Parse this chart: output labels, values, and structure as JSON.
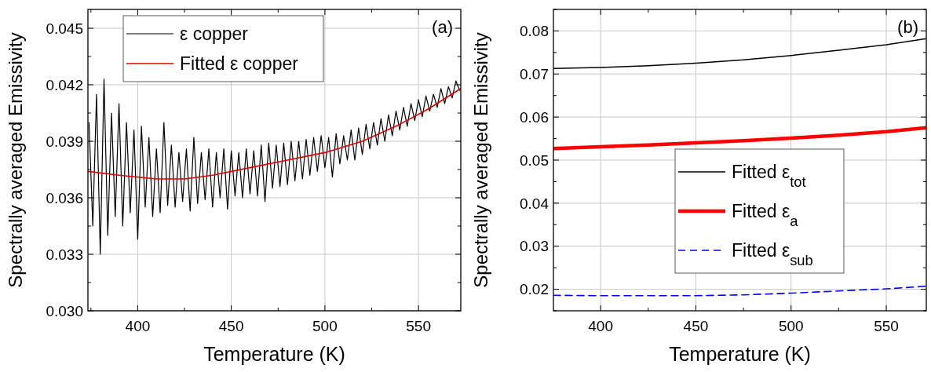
{
  "chart_data": [
    {
      "type": "line",
      "xlabel": "Temperature (K)",
      "ylabel": "Spectrally averaged Emissivity",
      "annotations": [
        "(a)"
      ],
      "xlim": [
        373.4,
        572.6
      ],
      "ylim": [
        0.03,
        0.046
      ],
      "xticks": [
        400,
        450,
        500,
        550
      ],
      "yticks": [
        {
          "value": 0.03,
          "label": "0.030"
        },
        0.033,
        0.036,
        0.039,
        0.042,
        0.045
      ],
      "grid": true,
      "legend": "top left",
      "series": [
        {
          "name": "ε copper",
          "color": "#000000",
          "x": [
            374,
            376,
            378,
            380,
            382,
            384,
            386,
            388,
            390,
            392,
            394,
            396,
            398,
            400,
            402,
            404,
            406,
            408,
            410,
            412,
            414,
            416,
            418,
            420,
            422,
            424,
            426,
            428,
            430,
            432,
            434,
            436,
            438,
            440,
            442,
            444,
            446,
            448,
            450,
            452,
            454,
            456,
            458,
            460,
            462,
            464,
            466,
            468,
            470,
            472,
            474,
            476,
            478,
            480,
            482,
            484,
            486,
            488,
            490,
            492,
            494,
            496,
            498,
            500,
            502,
            504,
            506,
            508,
            510,
            512,
            514,
            516,
            518,
            520,
            522,
            524,
            526,
            528,
            530,
            532,
            534,
            536,
            538,
            540,
            542,
            544,
            546,
            548,
            550,
            552,
            554,
            556,
            558,
            560,
            562,
            564,
            566,
            568,
            570,
            572
          ],
          "values": [
            0.04,
            0.0345,
            0.0415,
            0.033,
            0.0423,
            0.034,
            0.0405,
            0.035,
            0.041,
            0.0345,
            0.04,
            0.0352,
            0.0396,
            0.0338,
            0.0398,
            0.0355,
            0.0392,
            0.035,
            0.0386,
            0.0352,
            0.04,
            0.0356,
            0.0388,
            0.0355,
            0.0384,
            0.0358,
            0.0386,
            0.0353,
            0.0392,
            0.0357,
            0.0384,
            0.0359,
            0.0386,
            0.0355,
            0.0384,
            0.036,
            0.0386,
            0.0354,
            0.0385,
            0.0361,
            0.0384,
            0.036,
            0.0386,
            0.0362,
            0.0385,
            0.0361,
            0.0388,
            0.0358,
            0.0389,
            0.0365,
            0.0388,
            0.0366,
            0.0389,
            0.0367,
            0.039,
            0.0369,
            0.039,
            0.037,
            0.0391,
            0.0372,
            0.0392,
            0.0374,
            0.0393,
            0.0376,
            0.0392,
            0.0371,
            0.0394,
            0.0378,
            0.0393,
            0.038,
            0.0396,
            0.038,
            0.0397,
            0.0383,
            0.0399,
            0.0386,
            0.04,
            0.0388,
            0.0402,
            0.039,
            0.0404,
            0.0393,
            0.0406,
            0.0396,
            0.0408,
            0.0398,
            0.041,
            0.0401,
            0.0412,
            0.0403,
            0.0414,
            0.0406,
            0.0415,
            0.0408,
            0.0418,
            0.041,
            0.0419,
            0.0413,
            0.0422,
            0.0417
          ]
        },
        {
          "name": "Fitted ε copper",
          "color": "#e00000",
          "x": [
            373.4,
            390,
            410,
            425,
            440,
            460,
            480,
            500,
            520,
            540,
            555,
            572.6
          ],
          "values": [
            0.0374,
            0.0372,
            0.037,
            0.037,
            0.0372,
            0.0376,
            0.038,
            0.0384,
            0.039,
            0.0399,
            0.0407,
            0.0418
          ]
        }
      ]
    },
    {
      "type": "line",
      "xlabel": "Temperature (K)",
      "ylabel": "Spectrally averaged Emissivity",
      "annotations": [
        "(b)"
      ],
      "xlim": [
        375.2,
        571
      ],
      "ylim": [
        0.015,
        0.085
      ],
      "xticks": [
        400,
        450,
        500,
        550
      ],
      "yticks": [
        0.02,
        0.03,
        0.04,
        0.05,
        0.06,
        0.07,
        0.08
      ],
      "grid": true,
      "legend": "bottom right",
      "series": [
        {
          "name": "Fitted ε$_{tot}$",
          "color": "#000000",
          "x": [
            375.2,
            400,
            425,
            450,
            475,
            500,
            525,
            550,
            571
          ],
          "values": [
            0.0713,
            0.0715,
            0.0719,
            0.0725,
            0.0733,
            0.0743,
            0.0755,
            0.0768,
            0.0782
          ]
        },
        {
          "name": "Fitted ε$_{a}$",
          "color": "#ff0000",
          "x": [
            375.2,
            400,
            425,
            450,
            475,
            500,
            525,
            550,
            571
          ],
          "values": [
            0.0527,
            0.0531,
            0.0535,
            0.054,
            0.0545,
            0.0551,
            0.0558,
            0.0566,
            0.0575
          ]
        },
        {
          "name": "Fitted ε$_{sub}$",
          "color": "#0000ff",
          "line_style": "dashed",
          "x": [
            375.2,
            400,
            425,
            450,
            475,
            500,
            525,
            550,
            571
          ],
          "values": [
            0.0186,
            0.0185,
            0.0185,
            0.0185,
            0.0187,
            0.0191,
            0.0196,
            0.0201,
            0.0207
          ]
        }
      ]
    }
  ]
}
